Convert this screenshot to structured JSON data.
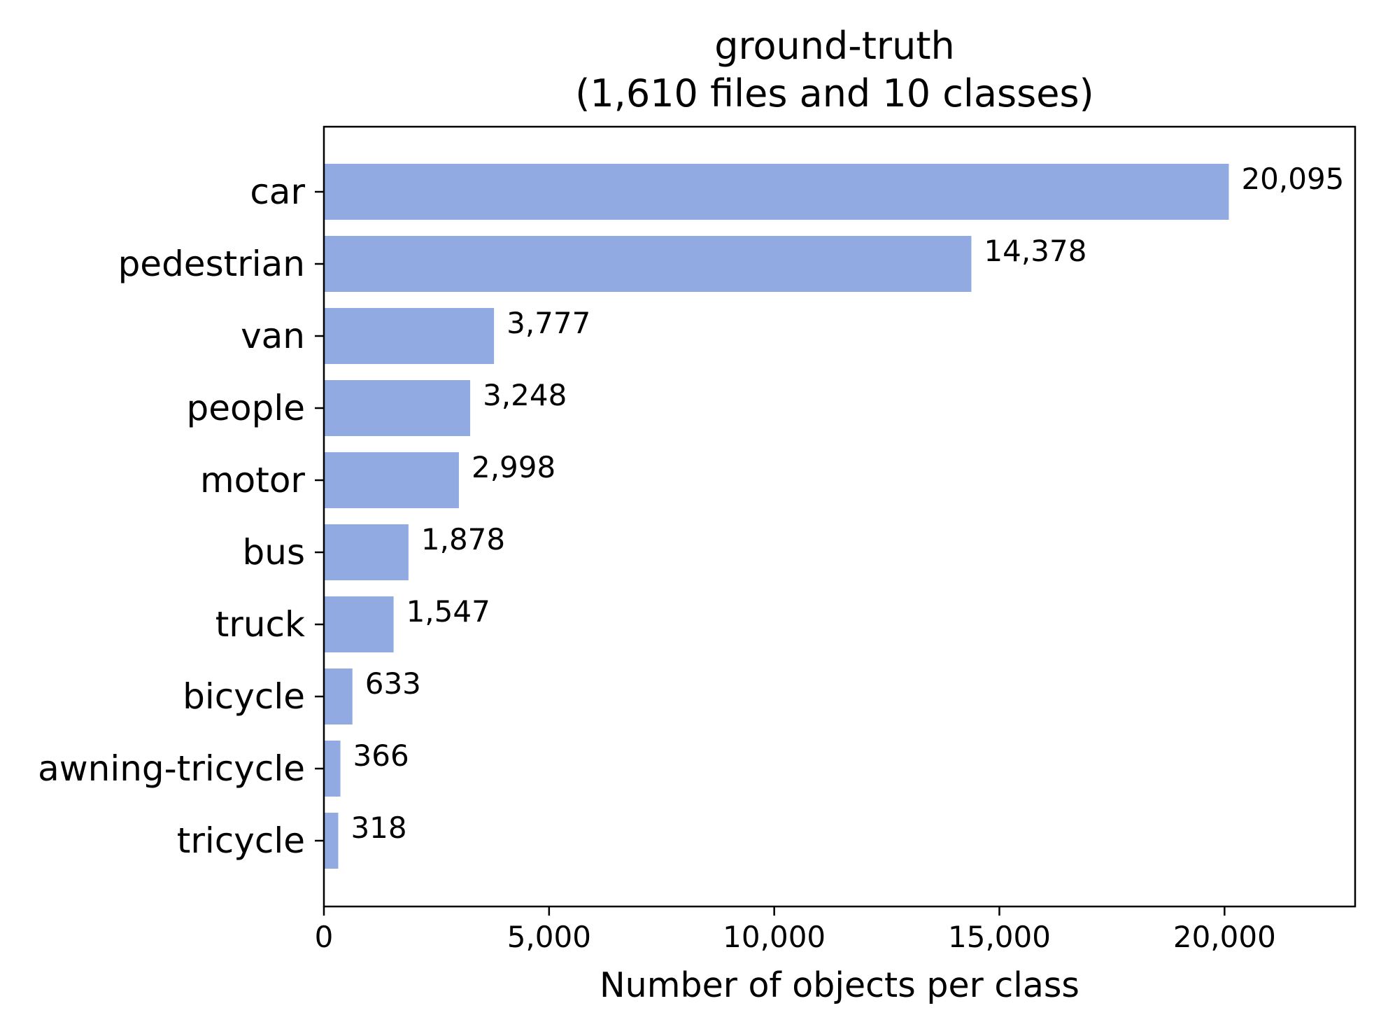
{
  "chart_data": {
    "type": "bar",
    "orientation": "horizontal",
    "title": "ground-truth",
    "subtitle": "(1,610 files and 10 classes)",
    "xlabel": "Number of objects per class",
    "ylabel": "",
    "categories": [
      "car",
      "pedestrian",
      "van",
      "people",
      "motor",
      "bus",
      "truck",
      "bicycle",
      "awning-tricycle",
      "tricycle"
    ],
    "values": [
      20095,
      14378,
      3777,
      3248,
      2998,
      1878,
      1547,
      633,
      366,
      318
    ],
    "value_labels": [
      "20,095",
      "14,378",
      "3,777",
      "3,248",
      "2,998",
      "1,878",
      "1,547",
      "633",
      "366",
      "318"
    ],
    "xlim": [
      0,
      22900
    ],
    "xticks": [
      0,
      5000,
      10000,
      15000,
      20000
    ],
    "xtick_labels": [
      "0",
      "5,000",
      "10,000",
      "15,000",
      "20,000"
    ],
    "grid": false,
    "legend": "none",
    "bar_color": "#91abe2"
  }
}
